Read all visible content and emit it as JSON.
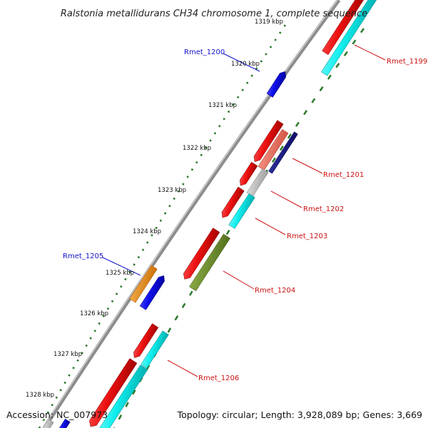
{
  "title": "Ralstonia metallidurans CH34 chromosome 1, complete sequence",
  "footer": {
    "accession": "Accession: NC_007973",
    "topology": "Topology: circular; Length: 3,928,089 bp; Genes: 3,669"
  },
  "kbp_labels": [
    "1319 kbp",
    "1320 kbp",
    "1321 kbp",
    "1322 kbp",
    "1323 kbp",
    "1324 kbp",
    "1325 kbp",
    "1326 kbp",
    "1327 kbp",
    "1328 kbp"
  ],
  "gene_labels": [
    {
      "text": "Rmet_1199",
      "color": "#cc1111"
    },
    {
      "text": "Rmet_1200",
      "color": "#1111cc"
    },
    {
      "text": "Rmet_1201",
      "color": "#cc1111"
    },
    {
      "text": "Rmet_1202",
      "color": "#cc1111"
    },
    {
      "text": "Rmet_1203",
      "color": "#cc1111"
    },
    {
      "text": "Rmet_1204",
      "color": "#cc1111"
    },
    {
      "text": "Rmet_1205",
      "color": "#1111cc"
    },
    {
      "text": "Rmet_1206",
      "color": "#cc1111"
    }
  ],
  "colors": {
    "backbone": "#8c8c8c",
    "cds_red": "#ee1111",
    "cyan": "#11eeee",
    "blue": "#1111ee",
    "navy": "#111188",
    "salmon": "#f07060",
    "grey": "#c8c8c8",
    "olive": "#6f8f2a",
    "orange": "#f5900f",
    "ticks": "#2a7a2a"
  }
}
